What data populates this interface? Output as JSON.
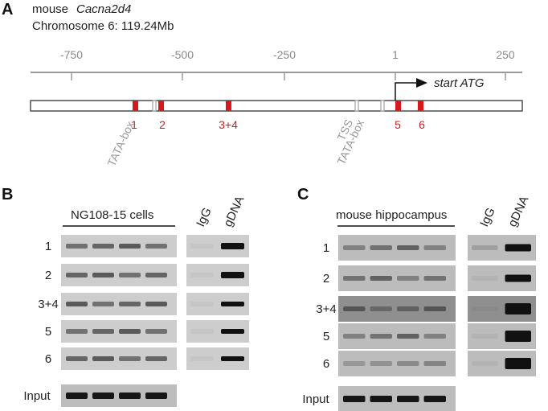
{
  "panel_a": {
    "letter": "A",
    "species": "mouse",
    "gene": "Cacna2d4",
    "chromosome": "Chromosome 6: 119.24Mb",
    "axis_ticks": [
      "-750",
      "-500",
      "-250",
      "1",
      "250"
    ],
    "start_label": "start ATG",
    "tss_label": "TSS",
    "tata_label": "TATA-box",
    "regions": [
      "1",
      "2",
      "3+4",
      "5",
      "6"
    ]
  },
  "panel_b": {
    "letter": "B",
    "sample": "NG108-15 cells",
    "controls": [
      "IgG",
      "gDNA"
    ],
    "rows": [
      "1",
      "2",
      "3+4",
      "5",
      "6"
    ],
    "input_label": "Input"
  },
  "panel_c": {
    "letter": "C",
    "sample": "mouse hippocampus",
    "controls": [
      "IgG",
      "gDNA"
    ],
    "rows": [
      "1",
      "2",
      "3+4",
      "5",
      "6"
    ],
    "input_label": "Input"
  },
  "colors": {
    "region_marker": "#d7191c",
    "tata_marker": "#a0a0a0",
    "axis": "#9a9a9a",
    "gel_bg": "#c9c9c9",
    "band": "#3a3a3a"
  }
}
